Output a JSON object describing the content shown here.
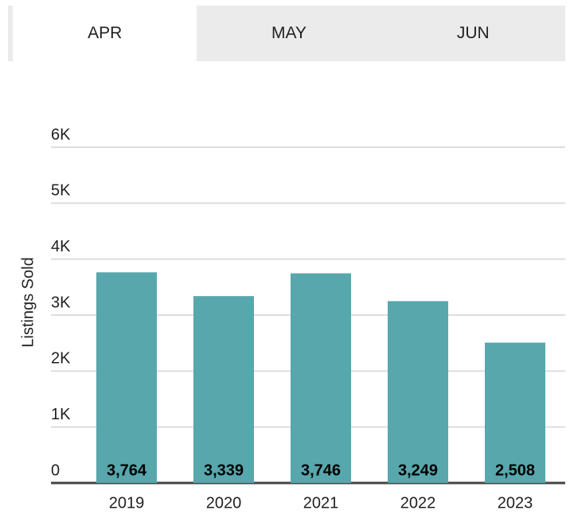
{
  "tabs": [
    "APR",
    "MAY",
    "JUN"
  ],
  "active_tab": 0,
  "chart_data": {
    "type": "bar",
    "y_label": "Listings Sold",
    "categories": [
      "2019",
      "2020",
      "2021",
      "2022",
      "2023"
    ],
    "values": [
      3764,
      3339,
      3746,
      3249,
      2508
    ],
    "value_labels": [
      "3,764",
      "3,339",
      "3,746",
      "3,249",
      "2,508"
    ],
    "color": "#57a7ad",
    "ylim": [
      0,
      6000
    ],
    "yticks": [
      0,
      {
        "value": 1000,
        "label": "1K"
      },
      {
        "value": 2000,
        "label": "2K"
      },
      {
        "value": 3000,
        "label": "3K"
      },
      {
        "value": 4000,
        "label": "4K"
      },
      {
        "value": 5000,
        "label": "5K"
      },
      {
        "value": 6000,
        "label": "6K"
      }
    ],
    "grid": true
  }
}
